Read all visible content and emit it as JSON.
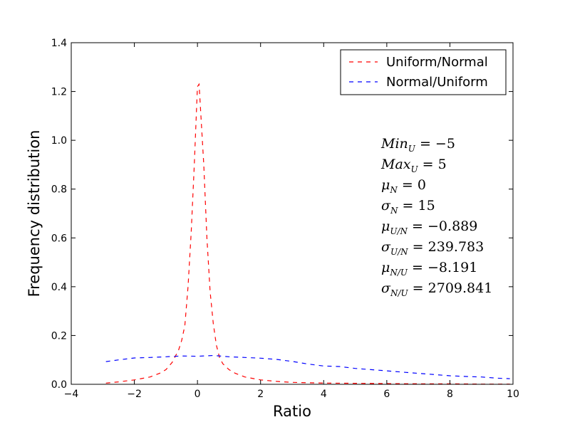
{
  "chart_data": {
    "type": "line",
    "title": "",
    "xlabel": "Ratio",
    "ylabel": "Frequency distribution",
    "xlim": [
      -4,
      10
    ],
    "ylim": [
      0,
      1.4
    ],
    "xticks": [
      -4,
      -2,
      0,
      2,
      4,
      6,
      8,
      10
    ],
    "xtick_labels": [
      "−4",
      "−2",
      "0",
      "2",
      "4",
      "6",
      "8",
      "10"
    ],
    "yticks": [
      0.0,
      0.2,
      0.4,
      0.6,
      0.8,
      1.0,
      1.2,
      1.4
    ],
    "ytick_labels": [
      "0.0",
      "0.2",
      "0.4",
      "0.6",
      "0.8",
      "1.0",
      "1.2",
      "1.4"
    ],
    "grid": false,
    "legend_position": "top-right",
    "series": [
      {
        "name": "Uniform/Normal",
        "color": "#ff0000",
        "line_style": "dashed",
        "x": [
          -2.9,
          -2.5,
          -2.0,
          -1.5,
          -1.2,
          -1.0,
          -0.8,
          -0.6,
          -0.5,
          -0.4,
          -0.3,
          -0.2,
          -0.1,
          0.0,
          0.05,
          0.1,
          0.2,
          0.3,
          0.4,
          0.5,
          0.6,
          0.7,
          0.8,
          1.0,
          1.2,
          1.5,
          2.0,
          2.5,
          3.0,
          4.0,
          5.0,
          6.0,
          7.0,
          8.0,
          9.0,
          9.9
        ],
        "y": [
          0.005,
          0.01,
          0.018,
          0.03,
          0.045,
          0.06,
          0.09,
          0.14,
          0.18,
          0.24,
          0.4,
          0.62,
          0.9,
          1.22,
          1.23,
          1.12,
          0.9,
          0.6,
          0.38,
          0.25,
          0.16,
          0.11,
          0.085,
          0.06,
          0.045,
          0.03,
          0.018,
          0.012,
          0.008,
          0.005,
          0.004,
          0.003,
          0.002,
          0.002,
          0.001,
          0.001
        ]
      },
      {
        "name": "Normal/Uniform",
        "color": "#0000ff",
        "line_style": "dashed",
        "x": [
          -2.9,
          -2.5,
          -2.0,
          -1.5,
          -1.0,
          -0.5,
          0.0,
          0.5,
          1.0,
          1.5,
          2.0,
          2.5,
          3.0,
          3.5,
          4.0,
          4.5,
          5.0,
          5.5,
          6.0,
          6.5,
          7.0,
          7.5,
          8.0,
          8.5,
          9.0,
          9.5,
          9.9
        ],
        "y": [
          0.093,
          0.1,
          0.108,
          0.11,
          0.113,
          0.116,
          0.115,
          0.118,
          0.113,
          0.11,
          0.107,
          0.102,
          0.094,
          0.083,
          0.075,
          0.073,
          0.065,
          0.06,
          0.055,
          0.05,
          0.045,
          0.04,
          0.035,
          0.032,
          0.03,
          0.025,
          0.023
        ]
      }
    ],
    "annotations": [
      {
        "base": "Min",
        "sub": "U",
        "rest": " = −5"
      },
      {
        "base": "Max",
        "sub": "U",
        "rest": " = 5"
      },
      {
        "base": "μ",
        "sub": "N",
        "rest": " = 0"
      },
      {
        "base": "σ",
        "sub": "N",
        "rest": " = 15"
      },
      {
        "base": "μ",
        "sub": "U/N",
        "rest": " = −0.889"
      },
      {
        "base": "σ",
        "sub": "U/N",
        "rest": " = 239.783"
      },
      {
        "base": "μ",
        "sub": "N/U",
        "rest": " = −8.191"
      },
      {
        "base": "σ",
        "sub": "N/U",
        "rest": " = 2709.841"
      }
    ]
  }
}
